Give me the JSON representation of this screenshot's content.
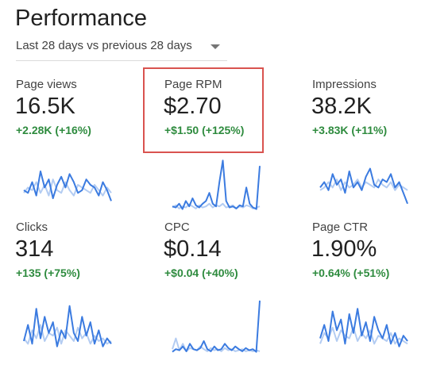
{
  "header": {
    "title": "Performance",
    "date_range": "Last 28 days vs previous 28 days",
    "dropdown_icon": "caret-down-icon"
  },
  "colors": {
    "current": "#3b7be0",
    "previous": "#b3ccf2",
    "positive": "#2e8b3e",
    "highlight": "#d9534f"
  },
  "metrics": [
    {
      "id": "page-views",
      "label": "Page views",
      "value": "16.5K",
      "change": "+2.28K (+16%)",
      "highlighted": false,
      "current": [
        0.4,
        0.35,
        0.55,
        0.3,
        0.75,
        0.45,
        0.6,
        0.25,
        0.5,
        0.65,
        0.45,
        0.7,
        0.55,
        0.35,
        0.4,
        0.6,
        0.5,
        0.45,
        0.3,
        0.55,
        0.4,
        0.2
      ],
      "previous": [
        0.35,
        0.45,
        0.4,
        0.55,
        0.35,
        0.5,
        0.3,
        0.6,
        0.4,
        0.35,
        0.55,
        0.4,
        0.3,
        0.5,
        0.45,
        0.4,
        0.35,
        0.5,
        0.4,
        0.3,
        0.45,
        0.35
      ]
    },
    {
      "id": "page-rpm",
      "label": "Page RPM",
      "value": "$2.70",
      "change": "+$1.50 (+125%)",
      "highlighted": true,
      "current": [
        0.1,
        0.08,
        0.15,
        0.05,
        0.2,
        0.1,
        0.25,
        0.12,
        0.08,
        0.15,
        0.2,
        0.35,
        0.15,
        0.1,
        0.55,
        0.95,
        0.2,
        0.08,
        0.1,
        0.06,
        0.12,
        0.1,
        0.45,
        0.15,
        0.08,
        0.05,
        0.85
      ],
      "previous": [
        0.08,
        0.12,
        0.06,
        0.1,
        0.08,
        0.14,
        0.1,
        0.06,
        0.12,
        0.08,
        0.1,
        0.15,
        0.08,
        0.12,
        0.1,
        0.15,
        0.08,
        0.1,
        0.12,
        0.06,
        0.1,
        0.08,
        0.12,
        0.1,
        0.06,
        0.08,
        0.1
      ]
    },
    {
      "id": "impressions",
      "label": "Impressions",
      "value": "38.2K",
      "change": "+3.83K (+11%)",
      "highlighted": false,
      "current": [
        0.45,
        0.55,
        0.4,
        0.7,
        0.5,
        0.6,
        0.35,
        0.75,
        0.45,
        0.55,
        0.4,
        0.65,
        0.8,
        0.5,
        0.45,
        0.6,
        0.55,
        0.7,
        0.45,
        0.55,
        0.35,
        0.15
      ],
      "previous": [
        0.4,
        0.45,
        0.55,
        0.45,
        0.6,
        0.4,
        0.55,
        0.45,
        0.5,
        0.6,
        0.45,
        0.55,
        0.5,
        0.45,
        0.6,
        0.5,
        0.45,
        0.55,
        0.4,
        0.5,
        0.45,
        0.4
      ]
    },
    {
      "id": "clicks",
      "label": "Clicks",
      "value": "314",
      "change": "+135 (+75%)",
      "highlighted": false,
      "current": [
        0.25,
        0.55,
        0.2,
        0.85,
        0.3,
        0.7,
        0.4,
        0.6,
        0.15,
        0.45,
        0.3,
        0.9,
        0.4,
        0.25,
        0.7,
        0.35,
        0.6,
        0.2,
        0.45,
        0.15,
        0.3,
        0.2
      ],
      "previous": [
        0.3,
        0.2,
        0.45,
        0.3,
        0.55,
        0.25,
        0.4,
        0.35,
        0.5,
        0.2,
        0.45,
        0.35,
        0.25,
        0.5,
        0.3,
        0.4,
        0.2,
        0.35,
        0.25,
        0.3,
        0.2,
        0.25
      ]
    },
    {
      "id": "cpc",
      "label": "CPC",
      "value": "$0.14",
      "change": "+$0.04 (+40%)",
      "highlighted": false,
      "current": [
        0.05,
        0.1,
        0.08,
        0.15,
        0.06,
        0.2,
        0.1,
        0.08,
        0.12,
        0.25,
        0.1,
        0.06,
        0.15,
        0.08,
        0.1,
        0.2,
        0.12,
        0.08,
        0.15,
        0.1,
        0.06,
        0.12,
        0.08,
        0.1,
        0.05,
        1.0
      ],
      "previous": [
        0.1,
        0.3,
        0.08,
        0.2,
        0.06,
        0.12,
        0.1,
        0.08,
        0.15,
        0.1,
        0.06,
        0.12,
        0.08,
        0.1,
        0.06,
        0.12,
        0.08,
        0.1,
        0.06,
        0.08,
        0.1,
        0.06,
        0.08,
        0.06,
        0.08,
        0.06
      ]
    },
    {
      "id": "page-ctr",
      "label": "Page CTR",
      "value": "1.90%",
      "change": "+0.64% (+51%)",
      "highlighted": false,
      "current": [
        0.3,
        0.55,
        0.25,
        0.8,
        0.45,
        0.65,
        0.2,
        0.75,
        0.4,
        0.85,
        0.35,
        0.6,
        0.25,
        0.7,
        0.45,
        0.3,
        0.55,
        0.2,
        0.4,
        0.15,
        0.35,
        0.25
      ],
      "previous": [
        0.2,
        0.4,
        0.3,
        0.5,
        0.25,
        0.45,
        0.35,
        0.3,
        0.5,
        0.25,
        0.4,
        0.3,
        0.45,
        0.2,
        0.35,
        0.3,
        0.25,
        0.4,
        0.2,
        0.3,
        0.25,
        0.2
      ]
    }
  ]
}
